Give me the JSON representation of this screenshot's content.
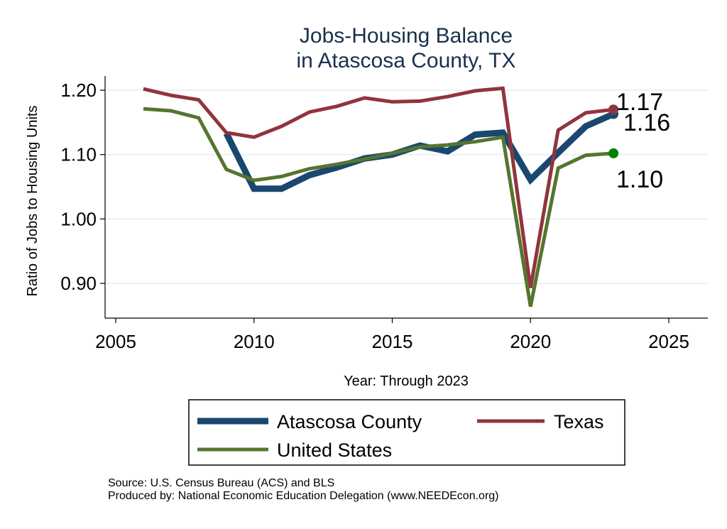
{
  "chart_data": {
    "type": "line",
    "title": [
      "Jobs-Housing Balance",
      "in Atascosa County, TX"
    ],
    "xlabel": "Year: Through 2023",
    "ylabel": "Ratio of Jobs to Housing Units",
    "xlim": [
      2004.6,
      2026.4
    ],
    "ylim": [
      0.845,
      1.222
    ],
    "xticks": [
      2005,
      2010,
      2015,
      2020,
      2025
    ],
    "xtick_labels": [
      "2005",
      "2010",
      "2015",
      "2020",
      "2025"
    ],
    "yticks": [
      0.9,
      1.0,
      1.1,
      1.2
    ],
    "ytick_labels": [
      "0.90",
      "1.00",
      "1.10",
      "1.20"
    ],
    "grid": true,
    "legend_position": "bottom",
    "series": [
      {
        "name": "Atascosa County",
        "color": "#1a476f",
        "width": 9,
        "x": [
          2009,
          2010,
          2011,
          2012,
          2013,
          2014,
          2015,
          2016,
          2017,
          2018,
          2019,
          2020,
          2021,
          2022,
          2023
        ],
        "values": [
          1.133,
          1.047,
          1.047,
          1.068,
          1.08,
          1.094,
          1.1,
          1.114,
          1.105,
          1.131,
          1.134,
          1.061,
          1.103,
          1.144,
          1.163
        ],
        "end_label": "1.16",
        "end_color": "#1a476f"
      },
      {
        "name": "Texas",
        "color": "#90353b",
        "width": 5,
        "x": [
          2006,
          2007,
          2008,
          2009,
          2010,
          2011,
          2012,
          2013,
          2014,
          2015,
          2016,
          2017,
          2018,
          2019,
          2020,
          2021,
          2022,
          2023
        ],
        "values": [
          1.202,
          1.192,
          1.185,
          1.134,
          1.127,
          1.144,
          1.166,
          1.175,
          1.188,
          1.182,
          1.183,
          1.19,
          1.199,
          1.203,
          0.893,
          1.138,
          1.165,
          1.17
        ],
        "end_label": "1.17",
        "end_color": "#90353b"
      },
      {
        "name": "United States",
        "color": "#55752f",
        "width": 5,
        "x": [
          2006,
          2007,
          2008,
          2009,
          2010,
          2011,
          2012,
          2013,
          2014,
          2015,
          2016,
          2017,
          2018,
          2019,
          2020,
          2021,
          2022,
          2023
        ],
        "values": [
          1.171,
          1.168,
          1.157,
          1.077,
          1.06,
          1.066,
          1.078,
          1.085,
          1.093,
          1.102,
          1.112,
          1.115,
          1.12,
          1.127,
          0.864,
          1.079,
          1.099,
          1.102
        ],
        "end_label": "1.10",
        "end_color": "#008000"
      }
    ]
  },
  "footer": {
    "source": "Source: U.S. Census Bureau (ACS) and BLS",
    "produced": "Produced by: National Economic Education Delegation (www.NEEDEcon.org)"
  }
}
